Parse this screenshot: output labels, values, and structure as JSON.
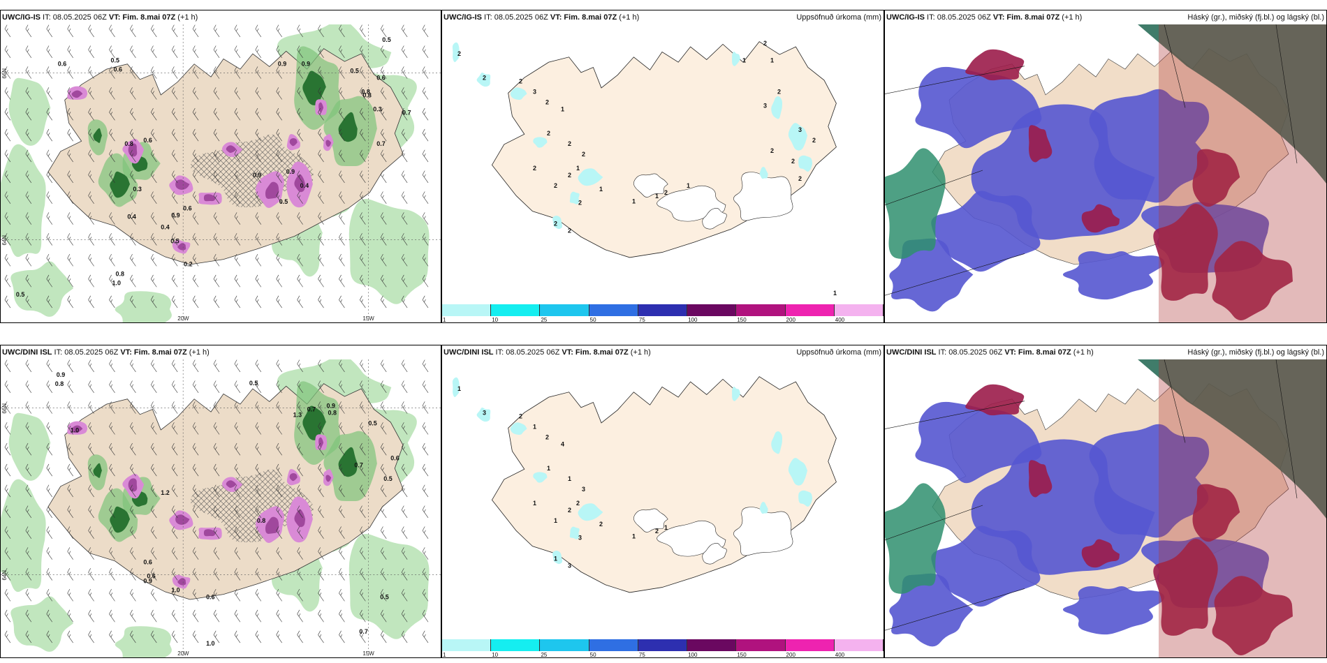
{
  "panels": [
    {
      "id": "p1",
      "model": "UWC/IG-IS",
      "it": " IT: 08.05.2025 06Z ",
      "vt": "VT: Fim. 8.mai 07Z",
      "lead": " (+1 h)",
      "right_title": ""
    },
    {
      "id": "p2",
      "model": "UWC/IG-IS",
      "it": " IT: 08.05.2025 06Z ",
      "vt": "VT: Fim. 8.mai 07Z",
      "lead": " (+1 h)",
      "right_title": "Uppsöfnuð úrkoma (mm)"
    },
    {
      "id": "p3",
      "model": "UWC/IG-IS",
      "it": " IT: 08.05.2025 06Z ",
      "vt": "VT: Fim. 8.mai 07Z",
      "lead": " (+1 h)",
      "right_title": "Háský (gr.), miðský (fj.bl.) og lágský (bl.)"
    },
    {
      "id": "p4",
      "model": "UWC/DINI ISL",
      "it": " IT: 08.05.2025 06Z ",
      "vt": "VT: Fim. 8.mai 07Z",
      "lead": " (+1 h)",
      "right_title": ""
    },
    {
      "id": "p5",
      "model": "UWC/DINI ISL",
      "it": " IT: 08.05.2025 06Z ",
      "vt": "VT: Fim. 8.mai 07Z",
      "lead": " (+1 h)",
      "right_title": "Uppsöfnuð úrkoma (mm)"
    },
    {
      "id": "p6",
      "model": "UWC/DINI ISL",
      "it": " IT: 08.05.2025 06Z ",
      "vt": "VT: Fim. 8.mai 07Z",
      "lead": " (+1 h)",
      "right_title": "Háský (gr.), miðský (fj.bl.) og lágský (bl.)"
    }
  ],
  "axis_labels": {
    "lon_20w": "20W",
    "lon_15w": "15W",
    "lat_66n": "66N",
    "lat_64n": "64N"
  },
  "colorbar": {
    "ticks": [
      "1",
      "10",
      "25",
      "50",
      "75",
      "100",
      "150",
      "200",
      "400"
    ],
    "colors": [
      "#b8f6f6",
      "#15eef0",
      "#1ec6ee",
      "#2f6fe3",
      "#2d2fb0",
      "#6a0860",
      "#b0127e",
      "#ee23b0",
      "#f4b2ef"
    ]
  },
  "precip_labels_top": [
    "2",
    "2",
    "2",
    "3",
    "2",
    "1",
    "2",
    "2",
    "2",
    "1",
    "2",
    "2",
    "2",
    "1",
    "2",
    "2",
    "2",
    "1",
    "1",
    "2",
    "1",
    "2",
    "1",
    "1",
    "2",
    "3",
    "3",
    "2",
    "2",
    "2",
    "2",
    "1"
  ],
  "precip_labels_bottom": [
    "1",
    "3",
    "2",
    "1",
    "2",
    "4",
    "1",
    "1",
    "3",
    "2",
    "1",
    "1",
    "2",
    "2",
    "3",
    "1",
    "3",
    "1",
    "2",
    "1"
  ],
  "wind_labels_top": [
    "0.6",
    "0.5",
    "0.6",
    "0.9",
    "0.9",
    "0.5",
    "0.6",
    "0.5",
    "0.8",
    "0.7",
    "0.3",
    "0.8",
    "0.8",
    "0.9",
    "0.4",
    "0.5",
    "0.4",
    "0.3",
    "0.4",
    "0.5",
    "0.2",
    "0.6",
    "0.9",
    "0.8",
    "1.0",
    "0.9",
    "0.6",
    "0.5",
    "0.7"
  ],
  "wind_labels_bottom": [
    "0.9",
    "0.8",
    "1.0",
    "0.6",
    "0.5",
    "0.7",
    "1.3",
    "0.9",
    "0.8",
    "0.6",
    "0.9",
    "1.0",
    "0.6",
    "1.2",
    "0.8",
    "0.5",
    "0.7",
    "0.6",
    "0.5",
    "1.0",
    "0.7",
    "0.5"
  ]
}
